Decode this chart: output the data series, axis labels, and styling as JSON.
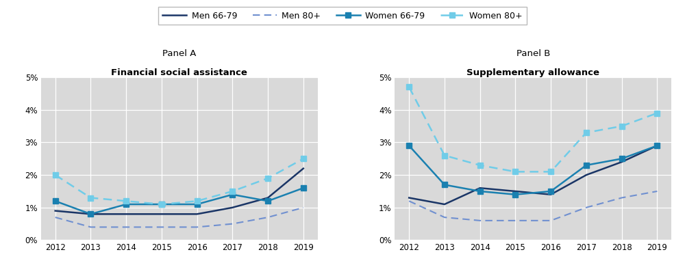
{
  "years": [
    2012,
    2013,
    2014,
    2015,
    2016,
    2017,
    2018,
    2019
  ],
  "panel_a": {
    "title_line1": "Panel A",
    "title_line2": "Financial social assistance",
    "men_6679": [
      0.009,
      0.008,
      0.008,
      0.008,
      0.008,
      0.01,
      0.013,
      0.022
    ],
    "men_80plus": [
      0.007,
      0.004,
      0.004,
      0.004,
      0.004,
      0.005,
      0.007,
      0.01
    ],
    "women_6679": [
      0.012,
      0.008,
      0.011,
      0.011,
      0.011,
      0.014,
      0.012,
      0.016
    ],
    "women_80plus": [
      0.02,
      0.013,
      0.012,
      0.011,
      0.012,
      0.015,
      0.019,
      0.025
    ]
  },
  "panel_b": {
    "title_line1": "Panel B",
    "title_line2": "Supplementary allowance",
    "men_6679": [
      0.013,
      0.011,
      0.016,
      0.015,
      0.014,
      0.02,
      0.024,
      0.029
    ],
    "men_80plus": [
      0.012,
      0.007,
      0.006,
      0.006,
      0.006,
      0.01,
      0.013,
      0.015
    ],
    "women_6679": [
      0.029,
      0.017,
      0.015,
      0.014,
      0.015,
      0.023,
      0.025,
      0.029
    ],
    "women_80plus": [
      0.047,
      0.026,
      0.023,
      0.021,
      0.021,
      0.033,
      0.035,
      0.039
    ]
  },
  "colors": {
    "men_6679": "#1a3566",
    "men_80plus": "#7090d0",
    "women_6679": "#1a80b0",
    "women_80plus": "#70cce8"
  },
  "ylim": [
    0,
    0.05
  ],
  "yticks": [
    0,
    0.01,
    0.02,
    0.03,
    0.04,
    0.05
  ],
  "legend_labels": [
    "Men 66-79",
    "Men 80+",
    "Women 66-79",
    "Women 80+"
  ],
  "background_color": "#d9d9d9",
  "fig_background": "#ffffff"
}
